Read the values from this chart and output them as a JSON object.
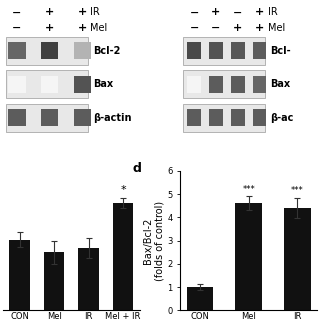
{
  "panel_c": {
    "categories": [
      "CON",
      "Mel",
      "IR",
      "Mel + IR"
    ],
    "values": [
      3.3,
      2.7,
      2.9,
      5.0
    ],
    "errors": [
      0.35,
      0.55,
      0.45,
      0.25
    ],
    "ylim": [
      0,
      6.5
    ],
    "significance": [
      "",
      "",
      "",
      "*"
    ],
    "bar_color": "#111111"
  },
  "panel_d": {
    "categories": [
      "CON",
      "Mel",
      "IR"
    ],
    "values": [
      1.0,
      4.6,
      4.4
    ],
    "errors": [
      0.12,
      0.3,
      0.45
    ],
    "ylabel": "Bax/Bcl-2\n(folds of control)",
    "ylim": [
      0,
      6
    ],
    "yticks": [
      0,
      1,
      2,
      3,
      4,
      5,
      6
    ],
    "significance": [
      "",
      "***",
      "***"
    ],
    "bar_color": "#111111"
  },
  "bg_color": "#ffffff",
  "font_size": 7,
  "tick_font_size": 6,
  "label_font_size": 9,
  "blot_bg": "#cccccc",
  "blot_border": "#999999"
}
